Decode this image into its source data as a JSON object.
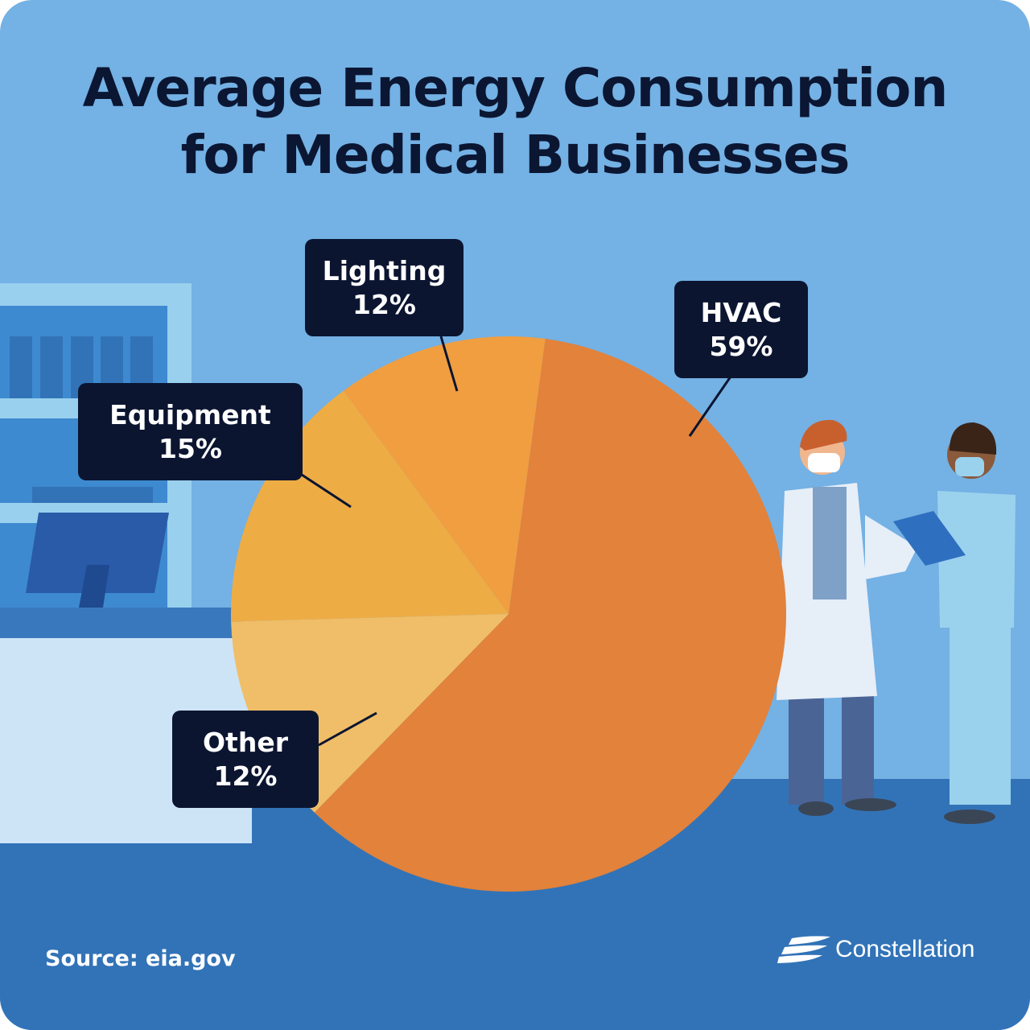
{
  "title_line1": "Average Energy Consumption",
  "title_line2": "for Medical Businesses",
  "source": "Source: eia.gov",
  "brand": "Constellation",
  "chart_data": {
    "type": "pie",
    "title": "Average Energy Consumption for Medical Businesses",
    "slices": [
      {
        "label": "HVAC",
        "value": 59,
        "display": "59%",
        "color": "#e2823b"
      },
      {
        "label": "Other",
        "value": 12,
        "display": "12%",
        "color": "#f0be68"
      },
      {
        "label": "Equipment",
        "value": 15,
        "display": "15%",
        "color": "#eeac45"
      },
      {
        "label": "Lighting",
        "value": 12,
        "display": "12%",
        "color": "#f09e40"
      }
    ]
  },
  "colors": {
    "sky": "#74b1e4",
    "floor": "#3273b7",
    "label_bg": "#0b1530",
    "title": "#0b1632"
  }
}
